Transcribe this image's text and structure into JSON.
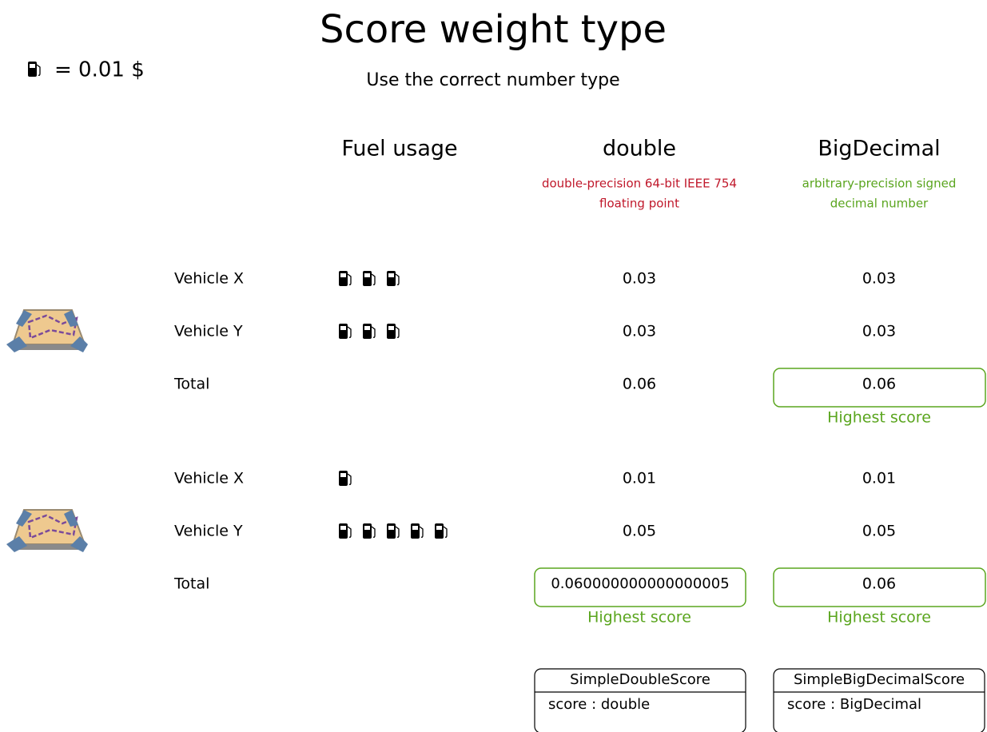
{
  "header": {
    "title": "Score weight type",
    "subtitle": "Use the correct number type"
  },
  "legend": {
    "text": "= 0.01 $"
  },
  "columns": {
    "fuel": {
      "label": "Fuel usage"
    },
    "double": {
      "label": "double",
      "description": [
        "double-precision 64-bit IEEE 754",
        "floating point"
      ]
    },
    "big_decimal": {
      "label": "BigDecimal",
      "description": [
        "arbitrary-precision signed",
        "decimal number"
      ]
    }
  },
  "scenarios": [
    {
      "rows": [
        {
          "label": "Vehicle X",
          "double": "0.03",
          "big_decimal": "0.03"
        },
        {
          "label": "Vehicle Y",
          "double": "0.03",
          "big_decimal": "0.03"
        },
        {
          "label": "Total",
          "double": "0.06",
          "big_decimal": "0.06"
        }
      ],
      "highest_score": {
        "big_decimal": "Highest score"
      }
    },
    {
      "rows": [
        {
          "label": "Vehicle X",
          "double": "0.01",
          "big_decimal": "0.01"
        },
        {
          "label": "Vehicle Y",
          "double": "0.05",
          "big_decimal": "0.05"
        },
        {
          "label": "Total",
          "double": "0.060000000000000005",
          "big_decimal": "0.06"
        }
      ],
      "highest_score": {
        "double": "Highest score",
        "big_decimal": "Highest score"
      }
    }
  ],
  "classes": [
    {
      "name": "SimpleDoubleScore",
      "attribute": "score : double"
    },
    {
      "name": "SimpleBigDecimalScore",
      "attribute": "score : BigDecimal"
    }
  ]
}
